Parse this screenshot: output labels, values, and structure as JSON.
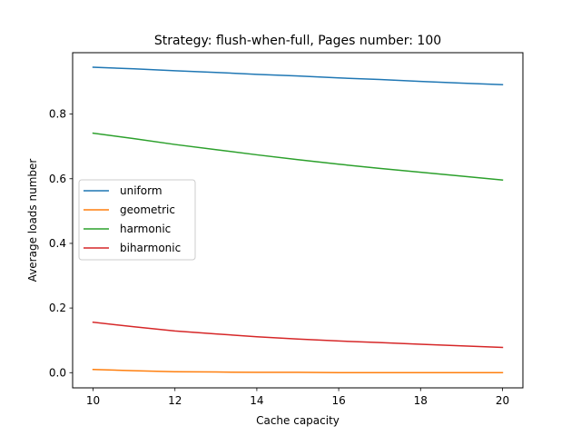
{
  "chart_data": {
    "type": "line",
    "title": "Strategy: flush-when-full, Pages number: 100",
    "xlabel": "Cache capacity",
    "ylabel": "Average loads number",
    "xlim": [
      9.5,
      20.5
    ],
    "ylim": [
      -0.047,
      0.99
    ],
    "x_ticks": [
      "10",
      "12",
      "14",
      "16",
      "18",
      "20"
    ],
    "y_ticks": [
      "0.0",
      "0.2",
      "0.4",
      "0.6",
      "0.8"
    ],
    "legend_position": "center-left",
    "grid": false,
    "x": [
      10,
      11,
      12,
      13,
      14,
      15,
      16,
      17,
      18,
      19,
      20
    ],
    "series": [
      {
        "name": "uniform",
        "color": "#1f77b4",
        "values": [
          0.945,
          0.94,
          0.934,
          0.929,
          0.923,
          0.918,
          0.912,
          0.907,
          0.901,
          0.896,
          0.891
        ]
      },
      {
        "name": "geometric",
        "color": "#ff7f0e",
        "values": [
          0.01,
          0.006,
          0.003,
          0.002,
          0.001,
          0.001,
          0.0,
          0.0,
          0.0,
          0.0,
          0.0
        ]
      },
      {
        "name": "harmonic",
        "color": "#2ca02c",
        "values": [
          0.741,
          0.724,
          0.706,
          0.69,
          0.674,
          0.659,
          0.645,
          0.632,
          0.62,
          0.608,
          0.596
        ]
      },
      {
        "name": "biharmonic",
        "color": "#d62728",
        "values": [
          0.156,
          0.142,
          0.129,
          0.12,
          0.111,
          0.104,
          0.098,
          0.093,
          0.088,
          0.083,
          0.078
        ]
      }
    ]
  }
}
